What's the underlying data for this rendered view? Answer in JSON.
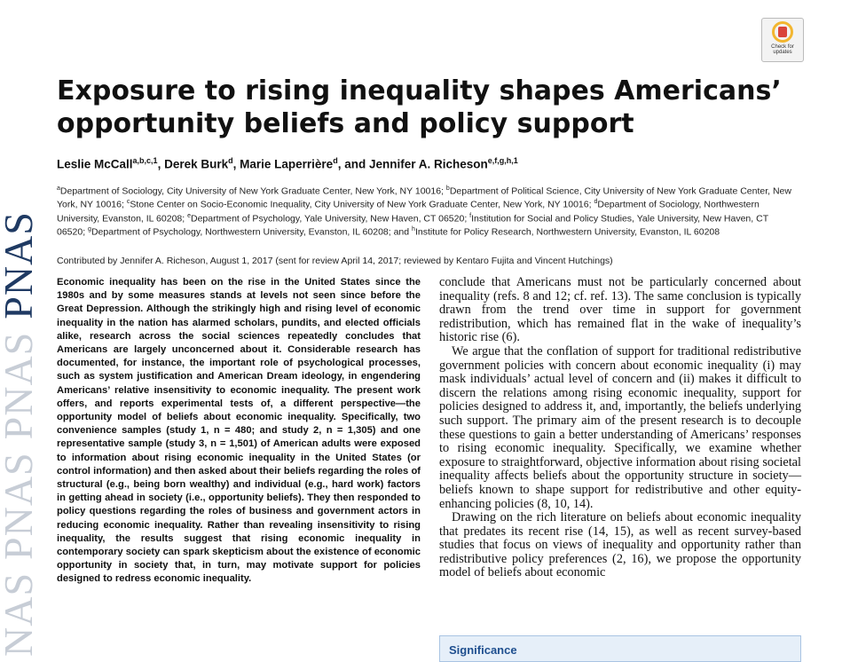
{
  "journal": {
    "spine": [
      "NAS",
      "PNAS",
      "PNAS",
      "PNAS"
    ]
  },
  "badge": {
    "line1": "Check for",
    "line2": "updates"
  },
  "title": "Exposure to rising inequality shapes Americans’ opportunity beliefs and policy support",
  "authors": [
    {
      "name": "Leslie McCall",
      "sup": "a,b,c,1",
      "sep": ", "
    },
    {
      "name": "Derek Burk",
      "sup": "d",
      "sep": ", "
    },
    {
      "name": "Marie Laperrière",
      "sup": "d",
      "sep": ", and "
    },
    {
      "name": "Jennifer A. Richeson",
      "sup": "e,f,g,h,1",
      "sep": ""
    }
  ],
  "affiliations": [
    {
      "sup": "a",
      "text": "Department of Sociology, City University of New York Graduate Center, New York, NY 10016; "
    },
    {
      "sup": "b",
      "text": "Department of Political Science, City University of New York Graduate Center, New York, NY 10016; "
    },
    {
      "sup": "c",
      "text": "Stone Center on Socio-Economic Inequality, City University of New York Graduate Center, New York, NY 10016; "
    },
    {
      "sup": "d",
      "text": "Department of Sociology, Northwestern University, Evanston, IL 60208; "
    },
    {
      "sup": "e",
      "text": "Department of Psychology, Yale University, New Haven, CT 06520; "
    },
    {
      "sup": "f",
      "text": "Institution for Social and Policy Studies, Yale University, New Haven, CT 06520; "
    },
    {
      "sup": "g",
      "text": "Department of Psychology, Northwestern University, Evanston, IL 60208; and "
    },
    {
      "sup": "h",
      "text": "Institute for Policy Research, Northwestern University, Evanston, IL 60208"
    }
  ],
  "contributed": "Contributed by Jennifer A. Richeson, August 1, 2017 (sent for review April 14, 2017; reviewed by Kentaro Fujita and Vincent Hutchings)",
  "abstract": "Economic inequality has been on the rise in the United States since the 1980s and by some measures stands at levels not seen since before the Great Depression. Although the strikingly high and rising level of economic inequality in the nation has alarmed scholars, pundits, and elected officials alike, research across the social sciences repeatedly concludes that Americans are largely unconcerned about it. Considerable research has documented, for instance, the important role of psychological processes, such as system justification and American Dream ideology, in engendering Americans’ relative insensitivity to economic inequality. The present work offers, and reports experimental tests of, a different perspective—the opportunity model of beliefs about economic inequality. Specifically, two convenience samples (study 1, n = 480; and study 2, n = 1,305) and one representative sample (study 3, n = 1,501) of American adults were exposed to information about rising economic inequality in the United States (or control information) and then asked about their beliefs regarding the roles of structural (e.g., being born wealthy) and individual (e.g., hard work) factors in getting ahead in society (i.e., opportunity beliefs). They then responded to policy questions regarding the roles of business and government actors in reducing economic inequality. Rather than revealing insensitivity to rising inequality, the results suggest that rising economic inequality in contemporary society can spark skepticism about the existence of economic opportunity in society that, in turn, may motivate support for policies designed to redress economic inequality.",
  "body_paragraphs": [
    "conclude that Americans must not be particularly concerned about inequality (refs. 8 and 12; cf. ref. 13). The same conclusion is typically drawn from the trend over time in support for government redistribution, which has remained flat in the wake of inequality’s historic rise (6).",
    "We argue that the conflation of support for traditional redistributive government policies with concern about economic inequality (i) may mask individuals’ actual level of concern and (ii) makes it difficult to discern the relations among rising economic inequality, support for policies designed to address it, and, importantly, the beliefs underlying such support. The primary aim of the present research is to decouple these questions to gain a better understanding of Americans’ responses to rising economic inequality. Specifically, we examine whether exposure to straightforward, objective information about rising societal inequality affects beliefs about the opportunity structure in society—beliefs known to shape support for redistributive and other equity-enhancing policies (8, 10, 14).",
    "Drawing on the rich literature on beliefs about economic inequality that predates its recent rise (14, 15), as well as recent survey-based studies that focus on views of inequality and opportunity rather than redistributive policy preferences (2, 16), we propose the opportunity model of beliefs about economic"
  ],
  "significance_heading": "Significance"
}
